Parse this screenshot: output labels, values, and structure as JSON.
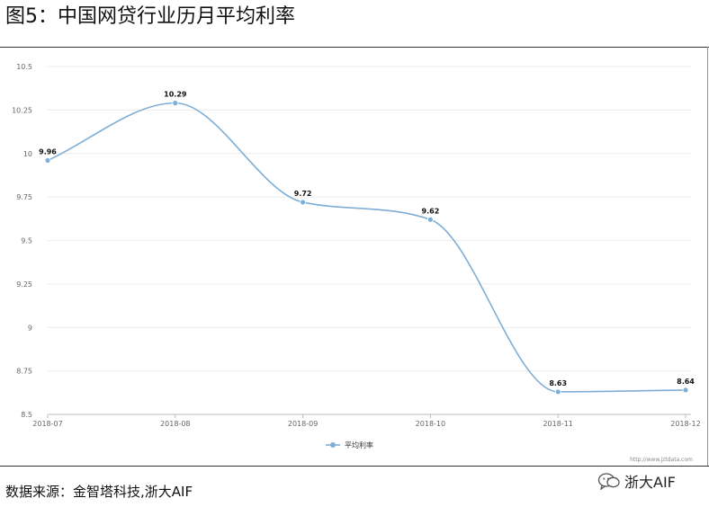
{
  "figure": {
    "title": "图5：中国网贷行业历月平均利率",
    "source": "数据来源：金智塔科技,浙大AIF",
    "watermark": "http://www.jztdata.com",
    "brand": "浙大AIF",
    "brand_icon": "wechat-icon"
  },
  "chart_data": {
    "type": "line",
    "smooth": true,
    "categories": [
      "2018-07",
      "2018-08",
      "2018-09",
      "2018-10",
      "2018-11",
      "2018-12"
    ],
    "series": [
      {
        "name": "平均利率",
        "values": [
          9.96,
          10.29,
          9.72,
          9.62,
          8.63,
          8.64
        ],
        "color": "#7eaed6"
      }
    ],
    "data_labels": [
      "9.96",
      "10.29",
      "9.72",
      "9.62",
      "8.63",
      "8.64"
    ],
    "yticks": [
      "8.5",
      "8.75",
      "9",
      "9.25",
      "9.5",
      "9.75",
      "10",
      "10.25",
      "10.5"
    ],
    "ylim": [
      8.5,
      10.5
    ],
    "grid": true,
    "legend": "bottom-center",
    "title": "",
    "xlabel": "",
    "ylabel": ""
  }
}
